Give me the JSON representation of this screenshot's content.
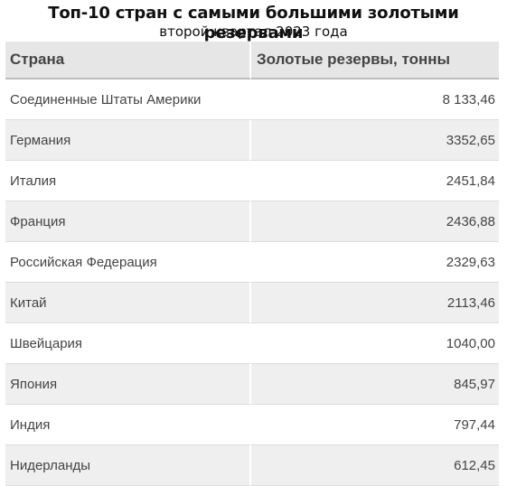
{
  "chart_data": {
    "type": "table",
    "title": "Топ-10 стран с самыми большими золотыми резервами",
    "subtitle": "второй квартал 2023 года",
    "columns": [
      "Страна",
      "Золотые резервы, тонны"
    ],
    "rows": [
      [
        "Соединенные Штаты Америки",
        "8 133,46"
      ],
      [
        "Германия",
        "3352,65"
      ],
      [
        "Италия",
        "2451,84"
      ],
      [
        "Франция",
        "2436,88"
      ],
      [
        "Российская Федерация",
        "2329,63"
      ],
      [
        "Китай",
        "2113,46"
      ],
      [
        "Швейцария",
        "1040,00"
      ],
      [
        "Япония",
        "845,97"
      ],
      [
        "Индия",
        "797,44"
      ],
      [
        "Нидерланды",
        "612,45"
      ]
    ]
  }
}
